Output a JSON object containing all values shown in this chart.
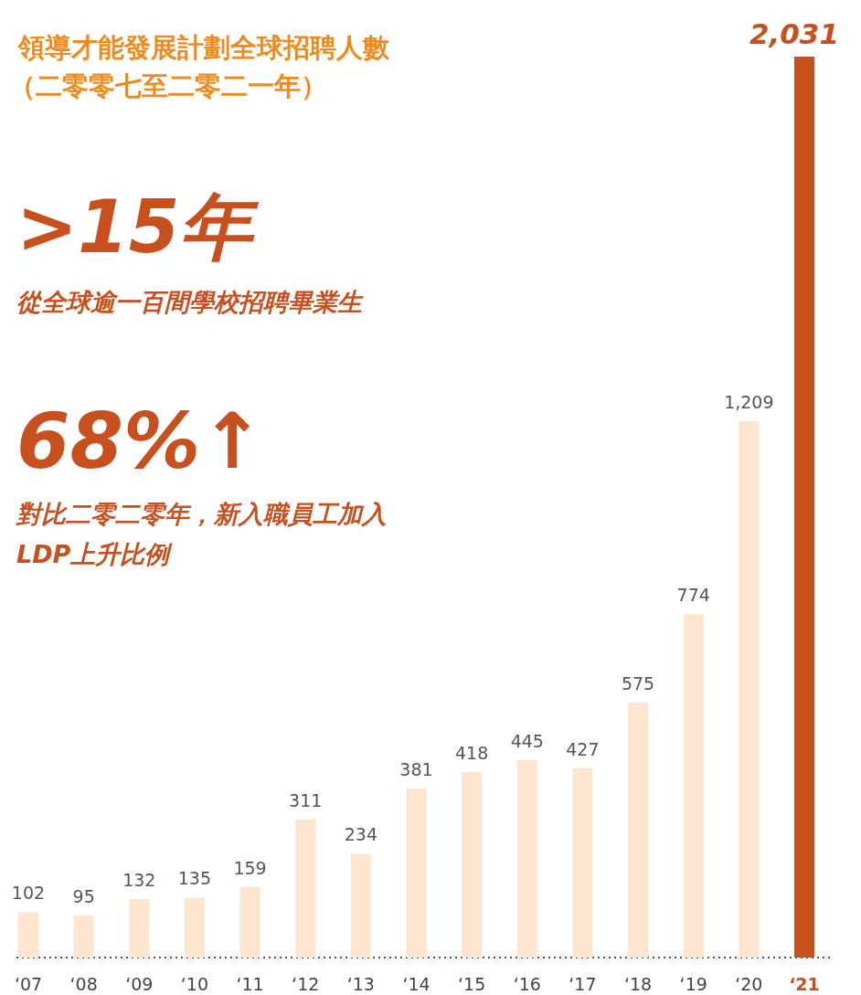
{
  "chart_data": {
    "type": "bar",
    "title": "領導才能發展計劃全球招聘人數",
    "subtitle": "（二零零七至二零二一年）",
    "annotations": [
      ">15年",
      "從全球逾一百間學校招聘畢業生",
      "68%↑",
      "對比二零二零年，新入職員工加入",
      "LDP上升比例"
    ],
    "categories": [
      "‘07",
      "‘08",
      "‘09",
      "‘10",
      "‘11",
      "‘12",
      "‘13",
      "‘14",
      "‘15",
      "‘16",
      "‘17",
      "‘18",
      "‘19",
      "‘20",
      "‘21"
    ],
    "values": [
      102,
      95,
      132,
      135,
      159,
      311,
      234,
      381,
      418,
      445,
      427,
      575,
      774,
      1209,
      2031
    ],
    "value_labels": [
      "102",
      "95",
      "132",
      "135",
      "159",
      "311",
      "234",
      "381",
      "418",
      "445",
      "427",
      "575",
      "774",
      "1,209",
      "2,031"
    ],
    "colors": [
      "#fde5cf",
      "#fde5cf",
      "#fde5cf",
      "#fde5cf",
      "#fde5cf",
      "#fde5cf",
      "#fde5cf",
      "#fde5cf",
      "#fde5cf",
      "#fde5cf",
      "#fde5cf",
      "#fde5cf",
      "#fde5cf",
      "#fde5cf",
      "#c8501f"
    ]
  }
}
